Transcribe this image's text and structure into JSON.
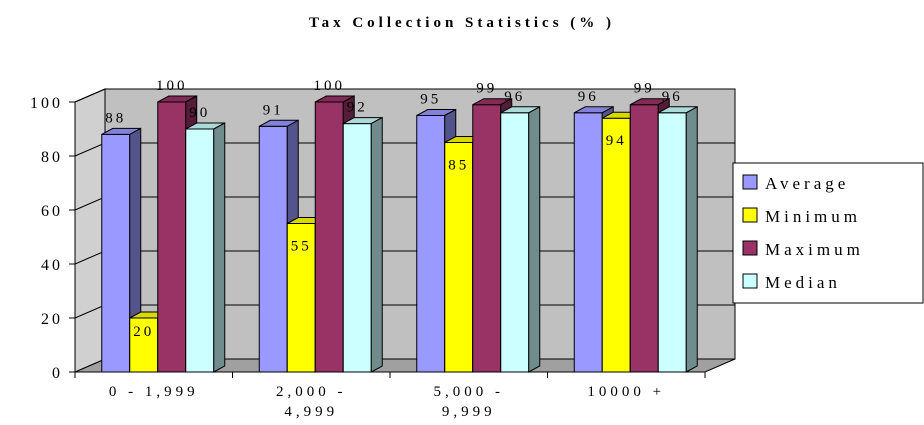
{
  "chart_data": {
    "type": "bar",
    "title": "Tax Collection Statistics (% )",
    "categories": [
      [
        "0 - 1,999"
      ],
      [
        "2,000 -",
        "4,999"
      ],
      [
        "5,000 -",
        "9,999"
      ],
      [
        "10000 +"
      ]
    ],
    "series": [
      {
        "name": "Average",
        "values": [
          88,
          91,
          95,
          96
        ],
        "color": "#9999ff"
      },
      {
        "name": "Minimum",
        "values": [
          20,
          55,
          85,
          94
        ],
        "color": "#ffff00"
      },
      {
        "name": "Maximum",
        "values": [
          100,
          100,
          99,
          99
        ],
        "color": "#993366"
      },
      {
        "name": "Median",
        "values": [
          90,
          92,
          96,
          96
        ],
        "color": "#ccffff"
      }
    ],
    "ylim": [
      0,
      100
    ],
    "yticks": [
      0,
      20,
      40,
      60,
      80,
      100
    ],
    "grid": true,
    "legend_position": "right",
    "style": "3d-clustered-column",
    "wall_color": "#c0c0c0"
  }
}
